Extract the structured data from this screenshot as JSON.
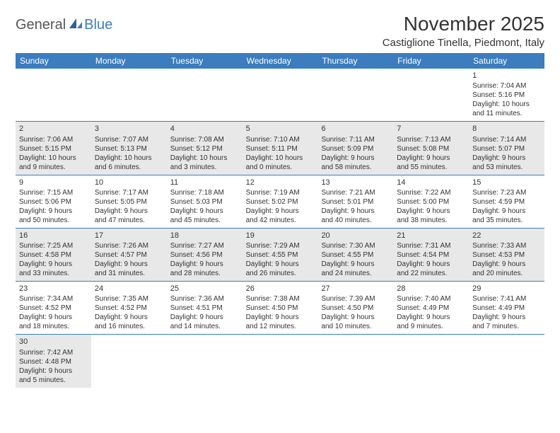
{
  "logo": {
    "text_general": "General",
    "text_blue": "Blue"
  },
  "title": {
    "month_year": "November 2025",
    "location": "Castiglione Tinella, Piedmont, Italy"
  },
  "colors": {
    "header_bg": "#3b7dbf",
    "header_text": "#ffffff",
    "shaded_bg": "#e8e8e8",
    "border": "#3b7dbf",
    "body_text": "#333333"
  },
  "day_names": [
    "Sunday",
    "Monday",
    "Tuesday",
    "Wednesday",
    "Thursday",
    "Friday",
    "Saturday"
  ],
  "weeks": [
    [
      {
        "empty": true
      },
      {
        "empty": true
      },
      {
        "empty": true
      },
      {
        "empty": true
      },
      {
        "empty": true
      },
      {
        "empty": true
      },
      {
        "num": "1",
        "sunrise": "Sunrise: 7:04 AM",
        "sunset": "Sunset: 5:16 PM",
        "daylight1": "Daylight: 10 hours",
        "daylight2": "and 11 minutes."
      }
    ],
    [
      {
        "num": "2",
        "sunrise": "Sunrise: 7:06 AM",
        "sunset": "Sunset: 5:15 PM",
        "daylight1": "Daylight: 10 hours",
        "daylight2": "and 9 minutes.",
        "shaded": true
      },
      {
        "num": "3",
        "sunrise": "Sunrise: 7:07 AM",
        "sunset": "Sunset: 5:13 PM",
        "daylight1": "Daylight: 10 hours",
        "daylight2": "and 6 minutes.",
        "shaded": true
      },
      {
        "num": "4",
        "sunrise": "Sunrise: 7:08 AM",
        "sunset": "Sunset: 5:12 PM",
        "daylight1": "Daylight: 10 hours",
        "daylight2": "and 3 minutes.",
        "shaded": true
      },
      {
        "num": "5",
        "sunrise": "Sunrise: 7:10 AM",
        "sunset": "Sunset: 5:11 PM",
        "daylight1": "Daylight: 10 hours",
        "daylight2": "and 0 minutes.",
        "shaded": true
      },
      {
        "num": "6",
        "sunrise": "Sunrise: 7:11 AM",
        "sunset": "Sunset: 5:09 PM",
        "daylight1": "Daylight: 9 hours",
        "daylight2": "and 58 minutes.",
        "shaded": true
      },
      {
        "num": "7",
        "sunrise": "Sunrise: 7:13 AM",
        "sunset": "Sunset: 5:08 PM",
        "daylight1": "Daylight: 9 hours",
        "daylight2": "and 55 minutes.",
        "shaded": true
      },
      {
        "num": "8",
        "sunrise": "Sunrise: 7:14 AM",
        "sunset": "Sunset: 5:07 PM",
        "daylight1": "Daylight: 9 hours",
        "daylight2": "and 53 minutes.",
        "shaded": true
      }
    ],
    [
      {
        "num": "9",
        "sunrise": "Sunrise: 7:15 AM",
        "sunset": "Sunset: 5:06 PM",
        "daylight1": "Daylight: 9 hours",
        "daylight2": "and 50 minutes."
      },
      {
        "num": "10",
        "sunrise": "Sunrise: 7:17 AM",
        "sunset": "Sunset: 5:05 PM",
        "daylight1": "Daylight: 9 hours",
        "daylight2": "and 47 minutes."
      },
      {
        "num": "11",
        "sunrise": "Sunrise: 7:18 AM",
        "sunset": "Sunset: 5:03 PM",
        "daylight1": "Daylight: 9 hours",
        "daylight2": "and 45 minutes."
      },
      {
        "num": "12",
        "sunrise": "Sunrise: 7:19 AM",
        "sunset": "Sunset: 5:02 PM",
        "daylight1": "Daylight: 9 hours",
        "daylight2": "and 42 minutes."
      },
      {
        "num": "13",
        "sunrise": "Sunrise: 7:21 AM",
        "sunset": "Sunset: 5:01 PM",
        "daylight1": "Daylight: 9 hours",
        "daylight2": "and 40 minutes."
      },
      {
        "num": "14",
        "sunrise": "Sunrise: 7:22 AM",
        "sunset": "Sunset: 5:00 PM",
        "daylight1": "Daylight: 9 hours",
        "daylight2": "and 38 minutes."
      },
      {
        "num": "15",
        "sunrise": "Sunrise: 7:23 AM",
        "sunset": "Sunset: 4:59 PM",
        "daylight1": "Daylight: 9 hours",
        "daylight2": "and 35 minutes."
      }
    ],
    [
      {
        "num": "16",
        "sunrise": "Sunrise: 7:25 AM",
        "sunset": "Sunset: 4:58 PM",
        "daylight1": "Daylight: 9 hours",
        "daylight2": "and 33 minutes.",
        "shaded": true
      },
      {
        "num": "17",
        "sunrise": "Sunrise: 7:26 AM",
        "sunset": "Sunset: 4:57 PM",
        "daylight1": "Daylight: 9 hours",
        "daylight2": "and 31 minutes.",
        "shaded": true
      },
      {
        "num": "18",
        "sunrise": "Sunrise: 7:27 AM",
        "sunset": "Sunset: 4:56 PM",
        "daylight1": "Daylight: 9 hours",
        "daylight2": "and 28 minutes.",
        "shaded": true
      },
      {
        "num": "19",
        "sunrise": "Sunrise: 7:29 AM",
        "sunset": "Sunset: 4:55 PM",
        "daylight1": "Daylight: 9 hours",
        "daylight2": "and 26 minutes.",
        "shaded": true
      },
      {
        "num": "20",
        "sunrise": "Sunrise: 7:30 AM",
        "sunset": "Sunset: 4:55 PM",
        "daylight1": "Daylight: 9 hours",
        "daylight2": "and 24 minutes.",
        "shaded": true
      },
      {
        "num": "21",
        "sunrise": "Sunrise: 7:31 AM",
        "sunset": "Sunset: 4:54 PM",
        "daylight1": "Daylight: 9 hours",
        "daylight2": "and 22 minutes.",
        "shaded": true
      },
      {
        "num": "22",
        "sunrise": "Sunrise: 7:33 AM",
        "sunset": "Sunset: 4:53 PM",
        "daylight1": "Daylight: 9 hours",
        "daylight2": "and 20 minutes.",
        "shaded": true
      }
    ],
    [
      {
        "num": "23",
        "sunrise": "Sunrise: 7:34 AM",
        "sunset": "Sunset: 4:52 PM",
        "daylight1": "Daylight: 9 hours",
        "daylight2": "and 18 minutes."
      },
      {
        "num": "24",
        "sunrise": "Sunrise: 7:35 AM",
        "sunset": "Sunset: 4:52 PM",
        "daylight1": "Daylight: 9 hours",
        "daylight2": "and 16 minutes."
      },
      {
        "num": "25",
        "sunrise": "Sunrise: 7:36 AM",
        "sunset": "Sunset: 4:51 PM",
        "daylight1": "Daylight: 9 hours",
        "daylight2": "and 14 minutes."
      },
      {
        "num": "26",
        "sunrise": "Sunrise: 7:38 AM",
        "sunset": "Sunset: 4:50 PM",
        "daylight1": "Daylight: 9 hours",
        "daylight2": "and 12 minutes."
      },
      {
        "num": "27",
        "sunrise": "Sunrise: 7:39 AM",
        "sunset": "Sunset: 4:50 PM",
        "daylight1": "Daylight: 9 hours",
        "daylight2": "and 10 minutes."
      },
      {
        "num": "28",
        "sunrise": "Sunrise: 7:40 AM",
        "sunset": "Sunset: 4:49 PM",
        "daylight1": "Daylight: 9 hours",
        "daylight2": "and 9 minutes."
      },
      {
        "num": "29",
        "sunrise": "Sunrise: 7:41 AM",
        "sunset": "Sunset: 4:49 PM",
        "daylight1": "Daylight: 9 hours",
        "daylight2": "and 7 minutes."
      }
    ],
    [
      {
        "num": "30",
        "sunrise": "Sunrise: 7:42 AM",
        "sunset": "Sunset: 4:48 PM",
        "daylight1": "Daylight: 9 hours",
        "daylight2": "and 5 minutes.",
        "shaded": true
      },
      {
        "empty": true
      },
      {
        "empty": true
      },
      {
        "empty": true
      },
      {
        "empty": true
      },
      {
        "empty": true
      },
      {
        "empty": true
      }
    ]
  ]
}
